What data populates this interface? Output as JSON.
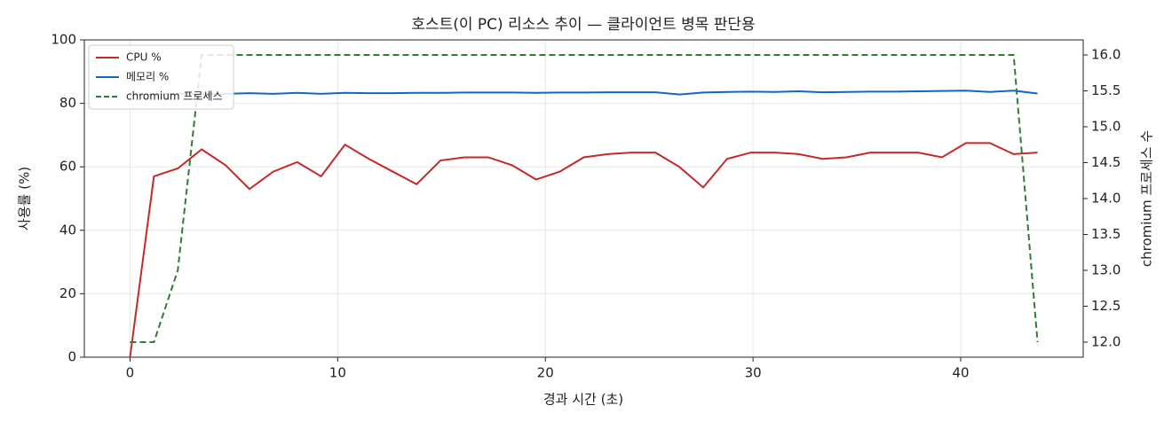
{
  "chart_data": {
    "type": "line",
    "title": "호스트(이 PC) 리소스 추이 — 클라이언트 병목 판단용",
    "x_label": "경과 시간 (초)",
    "y_label": "사용률 (%)",
    "y2_label": "chromium 프로세스 수",
    "x": [
      0,
      1.15,
      2.3,
      3.45,
      4.6,
      5.75,
      6.9,
      8.05,
      9.2,
      10.35,
      11.5,
      12.65,
      13.8,
      14.95,
      16.1,
      17.25,
      18.4,
      19.55,
      20.7,
      21.85,
      23,
      24.15,
      25.3,
      26.45,
      27.6,
      28.75,
      29.9,
      31.05,
      32.2,
      33.35,
      34.5,
      35.65,
      36.8,
      37.95,
      39.1,
      40.25,
      41.4,
      42.55,
      43.7
    ],
    "series": [
      {
        "name": "CPU %",
        "color": "#c62828",
        "linestyle": "solid",
        "values": [
          0,
          57,
          59.5,
          65.5,
          60.5,
          53,
          58.5,
          61.5,
          57,
          67,
          62.5,
          58.5,
          54.5,
          62,
          63,
          63,
          60.5,
          56,
          58.5,
          63,
          64,
          64.5,
          64.5,
          60,
          53.5,
          62.5,
          64.5,
          64.5,
          64,
          62.5,
          63,
          64.5,
          64.5,
          64.5,
          63,
          67.5,
          67.5,
          64,
          64.5
        ]
      },
      {
        "name": "메모리 %",
        "color": "#1565c0",
        "linestyle": "solid",
        "values": [
          82.5,
          82.8,
          83,
          83,
          83,
          83.2,
          83,
          83.3,
          83,
          83.3,
          83.2,
          83.2,
          83.3,
          83.3,
          83.4,
          83.4,
          83.4,
          83.3,
          83.4,
          83.4,
          83.5,
          83.5,
          83.5,
          82.8,
          83.4,
          83.6,
          83.7,
          83.6,
          83.8,
          83.5,
          83.6,
          83.7,
          83.7,
          83.8,
          83.9,
          84,
          83.6,
          84,
          83.1
        ]
      },
      {
        "name": "chromium 프로세스",
        "color": "#2e7d32",
        "linestyle": "dashed",
        "axis": "y2",
        "values": [
          12,
          12,
          13,
          16,
          16,
          16,
          16,
          16,
          16,
          16,
          16,
          16,
          16,
          16,
          16,
          16,
          16,
          16,
          16,
          16,
          16,
          16,
          16,
          16,
          16,
          16,
          16,
          16,
          16,
          16,
          16,
          16,
          16,
          16,
          16,
          16,
          16,
          16,
          12
        ]
      }
    ],
    "xlim": [
      -2.2,
      45.9
    ],
    "xticks": [
      0,
      10,
      20,
      30,
      40
    ],
    "ylim": [
      0,
      100
    ],
    "yticks": [
      0,
      20,
      40,
      60,
      80,
      100
    ],
    "y2lim": [
      11.79,
      16.21
    ],
    "y2ticks": [
      {
        "value": 12,
        "label": "12.0"
      },
      {
        "value": 12.5,
        "label": "12.5"
      },
      {
        "value": 13,
        "label": "13.0"
      },
      {
        "value": 13.5,
        "label": "13.5"
      },
      {
        "value": 14,
        "label": "14.0"
      },
      {
        "value": 14.5,
        "label": "14.5"
      },
      {
        "value": 15,
        "label": "15.0"
      },
      {
        "value": 15.5,
        "label": "15.5"
      },
      {
        "value": 16,
        "label": "16.0"
      }
    ],
    "grid": true,
    "legend": "upper-left"
  }
}
